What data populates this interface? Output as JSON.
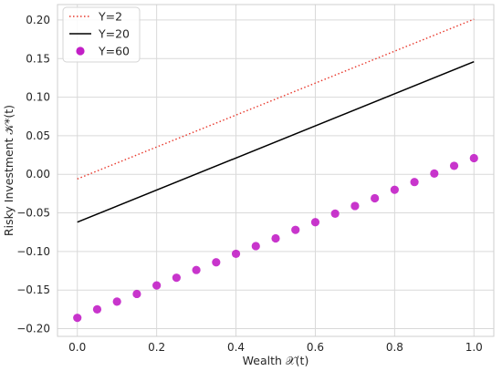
{
  "chart_data": {
    "type": "line",
    "xlabel": "Wealth 𝒳(t)",
    "ylabel": "Risky Investment 𝒦*(t)",
    "xlim": [
      -0.05,
      1.05
    ],
    "ylim": [
      -0.21,
      0.22
    ],
    "x_ticks": [
      0.0,
      0.2,
      0.4,
      0.6,
      0.8,
      1.0
    ],
    "y_ticks": [
      -0.2,
      -0.15,
      -0.1,
      -0.05,
      0.0,
      0.05,
      0.1,
      0.15,
      0.2
    ],
    "x_tick_labels": [
      "0.0",
      "0.2",
      "0.4",
      "0.6",
      "0.8",
      "1.0"
    ],
    "y_tick_labels": [
      "−0.20",
      "−0.15",
      "−0.10",
      "−0.05",
      "0.00",
      "0.05",
      "0.10",
      "0.15",
      "0.20"
    ],
    "grid": true,
    "legend_position": "top-left",
    "series": [
      {
        "name": "Y=2",
        "style": "dotted-line",
        "color": "#e8382c",
        "x": [
          0.0,
          1.0
        ],
        "y": [
          -0.006,
          0.201
        ]
      },
      {
        "name": "Y=20",
        "style": "solid-line",
        "color": "#000000",
        "x": [
          0.0,
          1.0
        ],
        "y": [
          -0.062,
          0.146
        ]
      },
      {
        "name": "Y=60",
        "style": "markers",
        "color": "#c21fc6",
        "x": [
          0.0,
          0.05,
          0.1,
          0.15,
          0.2,
          0.25,
          0.3,
          0.35,
          0.4,
          0.45,
          0.5,
          0.55,
          0.6,
          0.65,
          0.7,
          0.75,
          0.8,
          0.85,
          0.9,
          0.95,
          1.0
        ],
        "y": [
          -0.186,
          -0.175,
          -0.165,
          -0.155,
          -0.144,
          -0.134,
          -0.124,
          -0.114,
          -0.103,
          -0.093,
          -0.083,
          -0.072,
          -0.062,
          -0.051,
          -0.041,
          -0.031,
          -0.02,
          -0.01,
          0.001,
          0.011,
          0.021
        ]
      }
    ]
  }
}
